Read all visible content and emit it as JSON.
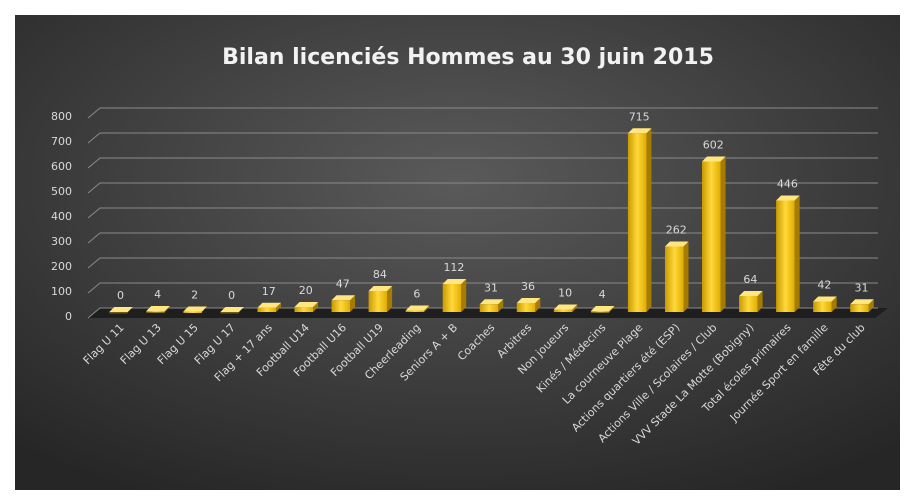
{
  "chart_data": {
    "type": "bar",
    "title": "Bilan licenciés Hommes au 30 juin 2015",
    "categories": [
      "Flag U 11",
      "Flag U 13",
      "Flag U 15",
      "Flag U 17",
      "Flag + 17 ans",
      "Football U14",
      "Football U16",
      "Football U19",
      "Cheerleading",
      "Seniors A + B",
      "Coaches",
      "Arbitres",
      "Non joueurs",
      "Kinés / Médecins",
      "La courneuve Plage",
      "Actions quartiers été (ESP)",
      "Actions Ville / Scolaires / Club",
      "VVV Stade La Motte (Bobigny)",
      "Total écoles primaires",
      "Journée Sport en famille",
      "Fête du club"
    ],
    "values": [
      0,
      4,
      2,
      0,
      17,
      20,
      47,
      84,
      6,
      112,
      31,
      36,
      10,
      4,
      715,
      262,
      602,
      64,
      446,
      42,
      31
    ],
    "color": "#f5c400",
    "ylim": [
      0,
      800
    ],
    "yticks": [
      0,
      100,
      200,
      300,
      400,
      500,
      600,
      700,
      800
    ],
    "grid": true
  }
}
